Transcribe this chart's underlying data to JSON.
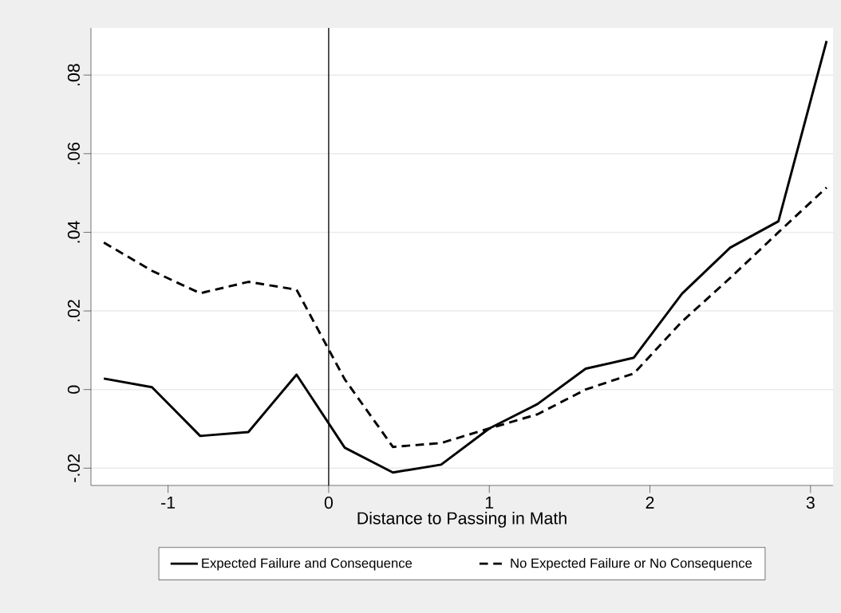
{
  "chart_data": {
    "type": "line",
    "xlabel": "Distance to Passing in Math",
    "x": [
      -1.4,
      -1.1,
      -0.8,
      -0.5,
      -0.2,
      0.1,
      0.4,
      0.7,
      1.0,
      1.3,
      1.6,
      1.9,
      2.2,
      2.5,
      2.8,
      3.1
    ],
    "series": [
      {
        "name": "Expected Failure and Consequence",
        "color": "#000000",
        "line_style": "solid",
        "values": [
          0.0028,
          0.0006,
          -0.0118,
          -0.0108,
          0.0038,
          -0.0148,
          -0.0211,
          -0.0191,
          -0.0099,
          -0.0037,
          0.0053,
          0.0081,
          0.0244,
          0.0361,
          0.0428,
          0.0887
        ]
      },
      {
        "name": "No Expected Failure or No Consequence",
        "color": "#000000",
        "line_style": "dashed",
        "values": [
          0.0374,
          0.0302,
          0.0245,
          0.0274,
          0.0254,
          0.0026,
          -0.0146,
          -0.0136,
          -0.0099,
          -0.0063,
          0.0,
          0.0041,
          0.0173,
          0.0284,
          0.04,
          0.0514
        ]
      }
    ],
    "xlim": [
      -1.48,
      3.14
    ],
    "ylim": [
      -0.0244,
      0.092
    ],
    "xticks": [
      -1,
      0,
      1,
      2,
      3
    ],
    "yticks": [
      {
        "value": -0.02,
        "label": "-.02"
      },
      {
        "value": 0,
        "label": "0"
      },
      {
        "value": 0.02,
        "label": ".02"
      },
      {
        "value": 0.04,
        "label": ".04"
      },
      {
        "value": 0.06,
        "label": ".06"
      },
      {
        "value": 0.08,
        "label": ".08"
      }
    ],
    "ref_lines": [
      {
        "axis": "x",
        "value": 0,
        "color": "#000000"
      }
    ],
    "grid": "y",
    "legend": "bottom",
    "marker": "none"
  }
}
